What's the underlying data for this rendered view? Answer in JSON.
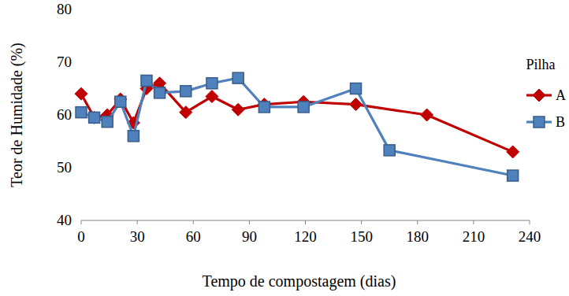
{
  "chart_data": {
    "type": "line",
    "x_label": "Tempo de compostagem (dias)",
    "y_label": "Teor de Humidade (%)",
    "legend_title": "Pilha",
    "legend": "right",
    "grid": false,
    "xlim": [
      0,
      240
    ],
    "xticks": [
      0,
      30,
      60,
      90,
      120,
      150,
      180,
      210,
      240
    ],
    "ylim": [
      40,
      80
    ],
    "yticks": [
      40,
      50,
      60,
      70,
      80
    ],
    "series": [
      {
        "name": "A",
        "color": "#c00000",
        "marker": "diamond",
        "line_style": "solid",
        "x": [
          0,
          7,
          14,
          21,
          28,
          35,
          42,
          56,
          70,
          84,
          98,
          119,
          147,
          185,
          231
        ],
        "values": [
          64,
          59.5,
          60,
          63,
          58.5,
          65,
          66,
          60.5,
          63.5,
          61,
          62,
          62.5,
          62,
          60,
          53
        ]
      },
      {
        "name": "B",
        "color": "#4f81bd",
        "marker": "square",
        "line_style": "solid",
        "x": [
          0,
          7,
          14,
          21,
          28,
          35,
          42,
          56,
          70,
          84,
          98,
          119,
          147,
          165,
          231
        ],
        "values": [
          60.5,
          59.5,
          58.7,
          62.5,
          56,
          66.5,
          64.2,
          64.5,
          66,
          67,
          61.5,
          61.5,
          65,
          53.3,
          48.5
        ]
      }
    ]
  }
}
